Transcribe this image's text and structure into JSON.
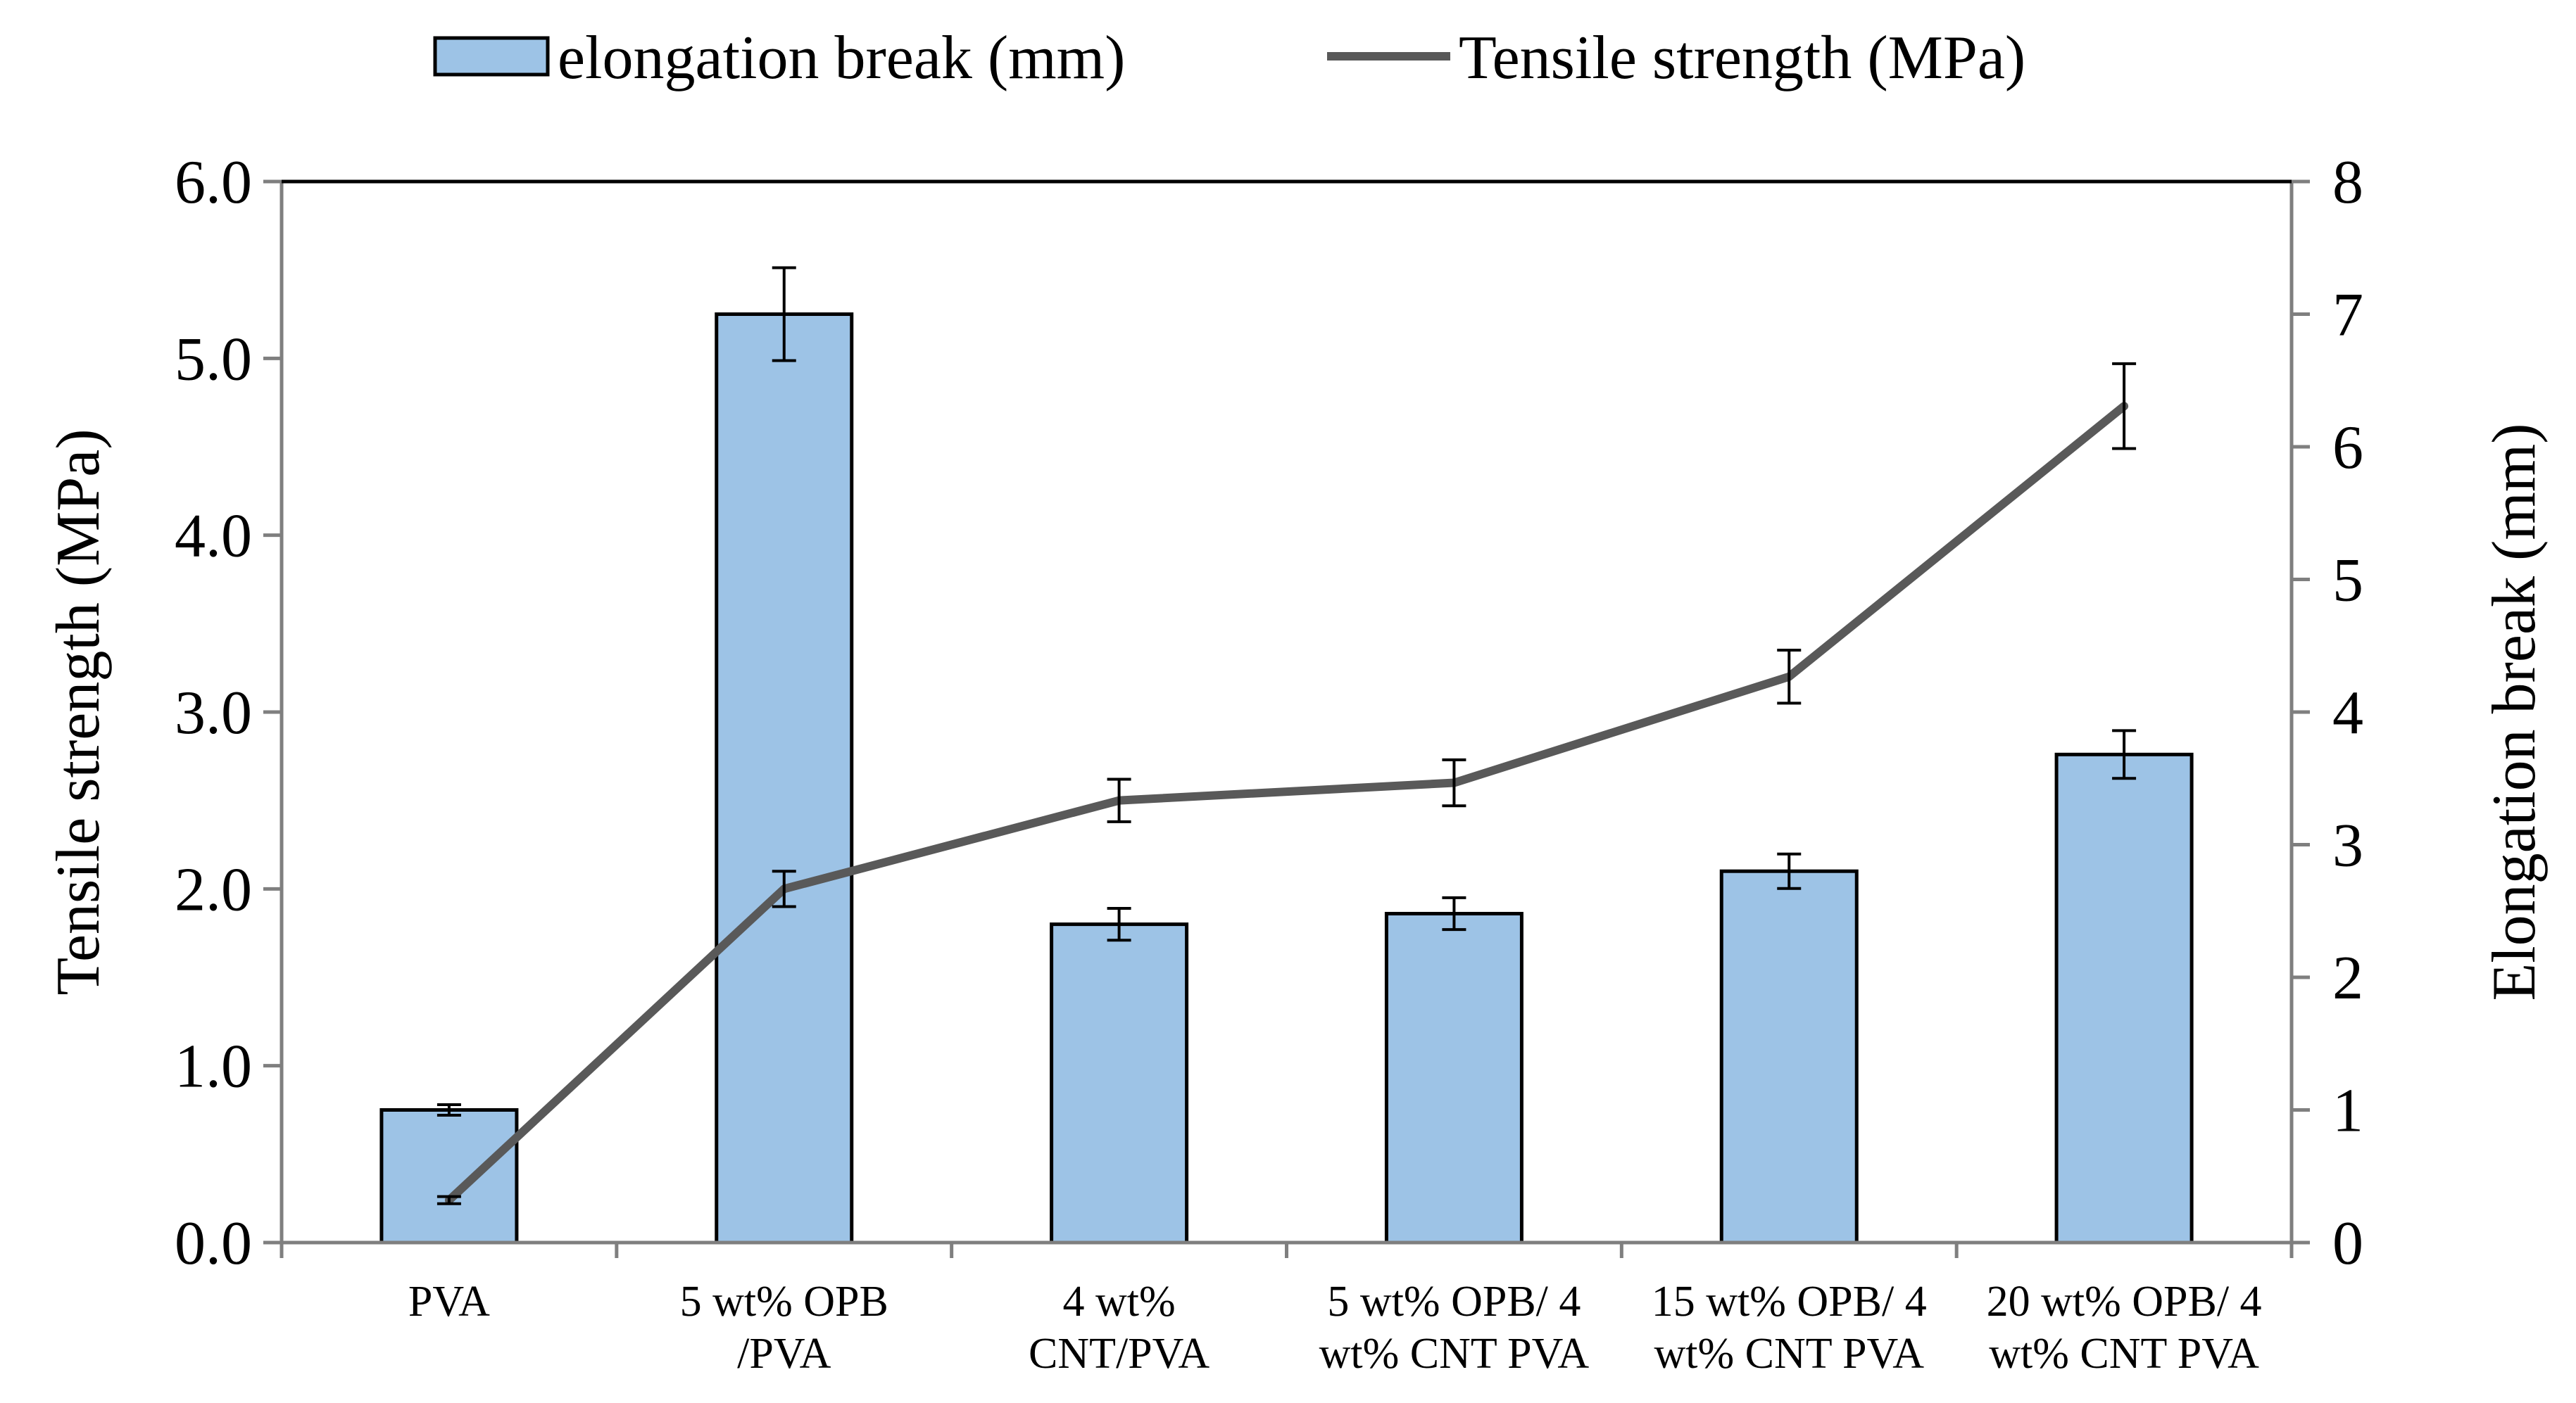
{
  "chart_data": {
    "type": "bar",
    "categories": [
      [
        "PVA"
      ],
      [
        "5 wt% OPB",
        "/PVA"
      ],
      [
        "4 wt%",
        "CNT/PVA"
      ],
      [
        "5 wt% OPB/ 4",
        "wt% CNT PVA"
      ],
      [
        "15 wt% OPB/ 4",
        "wt% CNT PVA"
      ],
      [
        "20 wt% OPB/ 4",
        "wt% CNT PVA"
      ]
    ],
    "series": [
      {
        "name": "elongation break (mm)",
        "kind": "bar",
        "axis": "right",
        "color": "#9dc3e6",
        "values": [
          1.0,
          7.0,
          2.4,
          2.48,
          2.8,
          3.68
        ],
        "errors": [
          0.04,
          0.35,
          0.12,
          0.12,
          0.13,
          0.18
        ]
      },
      {
        "name": "Tensile strength (MPa)",
        "kind": "line",
        "axis": "left",
        "color": "#595959",
        "values": [
          0.24,
          2.0,
          2.5,
          2.6,
          3.2,
          4.73
        ],
        "errors": [
          0.02,
          0.1,
          0.12,
          0.13,
          0.15,
          0.24
        ]
      }
    ],
    "y_left": {
      "label": "Tensile strength (MPa)",
      "range": [
        0,
        6
      ],
      "ticks": [
        "0.0",
        "1.0",
        "2.0",
        "3.0",
        "4.0",
        "5.0",
        "6.0"
      ]
    },
    "y_right": {
      "label": "Elongation break (mm)",
      "range": [
        0,
        8
      ],
      "ticks": [
        "0",
        "1",
        "2",
        "3",
        "4",
        "5",
        "6",
        "7",
        "8"
      ]
    },
    "legend_position": "top-center",
    "grid": false
  }
}
